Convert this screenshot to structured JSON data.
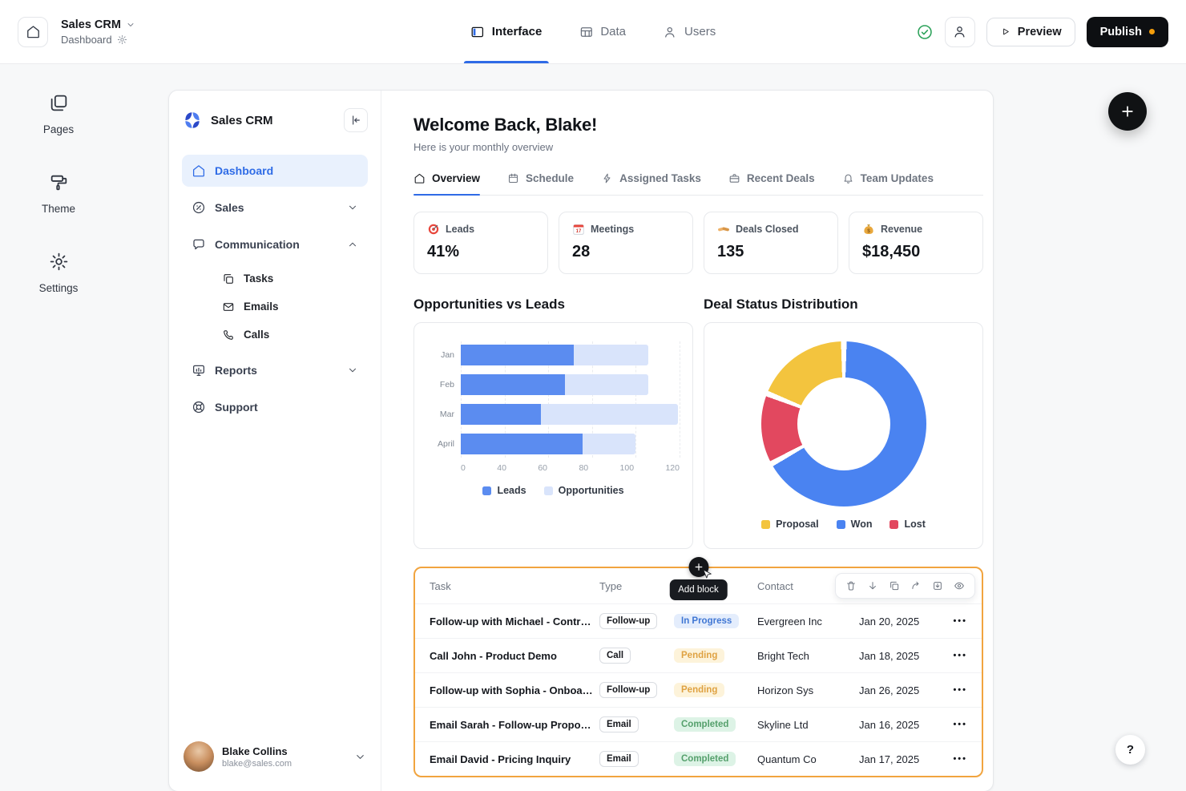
{
  "topbar": {
    "app_name": "Sales CRM",
    "page_name": "Dashboard",
    "tabs": [
      {
        "label": "Interface",
        "icon": "interface-icon",
        "active": true
      },
      {
        "label": "Data",
        "icon": "data-table-icon",
        "active": false
      },
      {
        "label": "Users",
        "icon": "users-icon",
        "active": false
      }
    ],
    "preview_label": "Preview",
    "publish_label": "Publish"
  },
  "rail": {
    "items": [
      {
        "label": "Pages",
        "icon": "pages-icon"
      },
      {
        "label": "Theme",
        "icon": "theme-icon"
      },
      {
        "label": "Settings",
        "icon": "settings-icon"
      }
    ]
  },
  "app": {
    "sidebar": {
      "brand": "Sales CRM",
      "nav": [
        {
          "label": "Dashboard",
          "icon": "dashboard-icon",
          "active": true
        },
        {
          "label": "Sales",
          "icon": "sales-icon",
          "chevron": "down"
        },
        {
          "label": "Communication",
          "icon": "communication-icon",
          "chevron": "up",
          "children": [
            {
              "label": "Tasks",
              "icon": "tasks-icon"
            },
            {
              "label": "Emails",
              "icon": "emails-icon"
            },
            {
              "label": "Calls",
              "icon": "calls-icon"
            }
          ]
        },
        {
          "label": "Reports",
          "icon": "reports-icon",
          "chevron": "down"
        },
        {
          "label": "Support",
          "icon": "support-icon"
        }
      ],
      "user": {
        "name": "Blake Collins",
        "email": "blake@sales.com"
      }
    },
    "main": {
      "greeting": "Welcome Back, Blake!",
      "subtitle": "Here is your monthly overview",
      "tabs": [
        {
          "label": "Overview",
          "icon": "home-icon",
          "active": true
        },
        {
          "label": "Schedule",
          "icon": "calendar-icon",
          "active": false
        },
        {
          "label": "Assigned Tasks",
          "icon": "lightning-icon",
          "active": false
        },
        {
          "label": "Recent Deals",
          "icon": "briefcase-icon",
          "active": false
        },
        {
          "label": "Team Updates",
          "icon": "bell-icon",
          "active": false
        }
      ],
      "stats": [
        {
          "icon": "target-icon",
          "label": "Leads",
          "value": "41%"
        },
        {
          "icon": "calendar-emoji-icon",
          "label": "Meetings",
          "value": "28"
        },
        {
          "icon": "handshake-icon",
          "label": "Deals Closed",
          "value": "135"
        },
        {
          "icon": "money-bag-icon",
          "label": "Revenue",
          "value": "$18,450"
        }
      ],
      "table": {
        "selected": true,
        "tooltip": "Add block",
        "toolbar_icons": [
          "delete-icon",
          "move-down-icon",
          "duplicate-icon",
          "redo-icon",
          "insert-icon",
          "visibility-icon"
        ],
        "columns": [
          "Task",
          "Type",
          "",
          "Contact",
          "Due Date"
        ],
        "rows": [
          {
            "task": "Follow-up with Michael - Contr…",
            "type": "Follow-up",
            "status": "In Progress",
            "contact": "Evergreen Inc",
            "due_date": "Jan 20, 2025"
          },
          {
            "task": "Call John - Product Demo",
            "type": "Call",
            "status": "Pending",
            "contact": "Bright Tech",
            "due_date": "Jan 18, 2025"
          },
          {
            "task": "Follow-up with Sophia - Onboa…",
            "type": "Follow-up",
            "status": "Pending",
            "contact": "Horizon Sys",
            "due_date": "Jan 26, 2025"
          },
          {
            "task": "Email Sarah - Follow-up Propo…",
            "type": "Email",
            "status": "Completed",
            "contact": "Skyline Ltd",
            "due_date": "Jan 16, 2025"
          },
          {
            "task": "Email David - Pricing Inquiry",
            "type": "Email",
            "status": "Completed",
            "contact": "Quantum Co",
            "due_date": "Jan 17, 2025"
          }
        ],
        "status_styles": {
          "In Progress": {
            "bg": "#e4edfc",
            "text": "#4077d4"
          },
          "Pending": {
            "bg": "#fdf3da",
            "text": "#dfa242"
          },
          "Completed": {
            "bg": "#ddf3e6",
            "text": "#55a06c"
          }
        }
      }
    }
  },
  "chart_data": [
    {
      "type": "bar",
      "orientation": "horizontal",
      "stacked": true,
      "title": "Opportunities vs Leads",
      "categories": [
        "Jan",
        "Feb",
        "Mar",
        "April"
      ],
      "series": [
        {
          "name": "Leads",
          "color": "#5b8cf0",
          "values": [
            62,
            57,
            44,
            67
          ]
        },
        {
          "name": "Opportunities",
          "color": "#d9e4fb",
          "values": [
            41,
            46,
            75,
            29
          ]
        }
      ],
      "xticks": [
        0,
        40,
        60,
        80,
        100,
        120
      ],
      "xlim": [
        0,
        120
      ],
      "grid": "dashed-vertical",
      "legend_position": "bottom"
    },
    {
      "type": "pie",
      "donut": true,
      "title": "Deal Status Distribution",
      "labels": [
        "Proposal",
        "Won",
        "Lost"
      ],
      "values": [
        19,
        67,
        14
      ],
      "colors": [
        "#f3c43e",
        "#4a83f1",
        "#e2485f"
      ],
      "draw_order": [
        "Won",
        "Lost",
        "Proposal"
      ],
      "legend_position": "bottom"
    }
  ],
  "floating": {
    "help_label": "?"
  },
  "colors": {
    "accent_blue": "#2f6be6",
    "selection_orange": "#f1a43f",
    "publish_dot": "#f59e0b",
    "check_green": "#2aa158",
    "canvas_bg": "#f7f8f9"
  }
}
